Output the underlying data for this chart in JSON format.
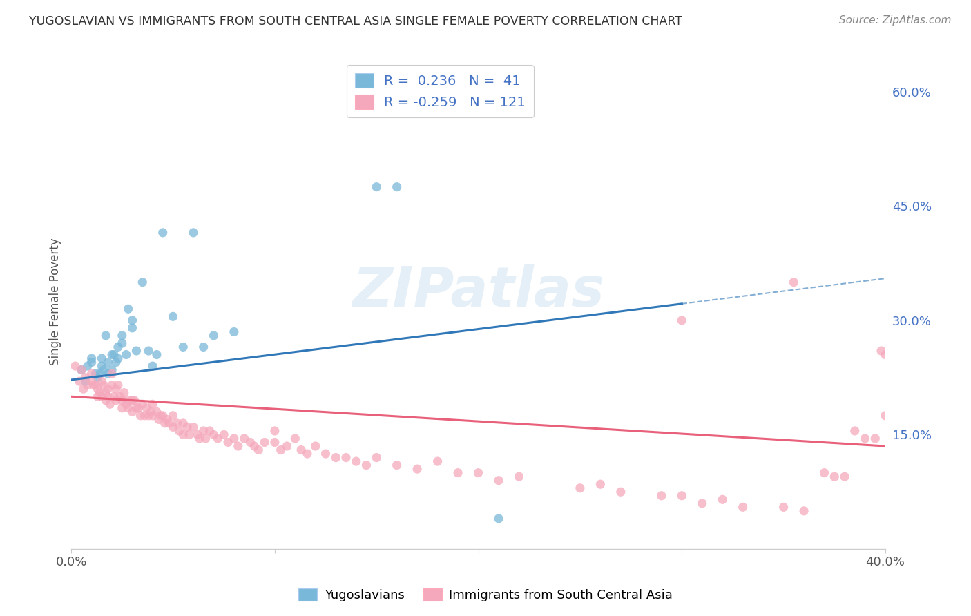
{
  "title": "YUGOSLAVIAN VS IMMIGRANTS FROM SOUTH CENTRAL ASIA SINGLE FEMALE POVERTY CORRELATION CHART",
  "source": "Source: ZipAtlas.com",
  "ylabel": "Single Female Poverty",
  "xlim": [
    0.0,
    0.4
  ],
  "ylim": [
    0.0,
    0.65
  ],
  "ytick_vals": [
    0.15,
    0.3,
    0.45,
    0.6
  ],
  "ytick_labels": [
    "15.0%",
    "30.0%",
    "45.0%",
    "60.0%"
  ],
  "blue_R": 0.236,
  "blue_N": 41,
  "pink_R": -0.259,
  "pink_N": 121,
  "blue_color": "#7ab8d9",
  "pink_color": "#f5a8bc",
  "blue_line_color": "#3178b8",
  "pink_line_color": "#e8607a",
  "watermark_text": "ZIPatlas",
  "legend_label_blue": "Yugoslavians",
  "legend_label_pink": "Immigrants from South Central Asia",
  "background_color": "#ffffff",
  "grid_color": "#d0d8e8",
  "blue_line_start_x": 0.0,
  "blue_line_end_x": 0.4,
  "blue_line_solid_end_x": 0.3,
  "blue_line_start_y": 0.222,
  "blue_line_end_y": 0.355,
  "pink_line_start_x": 0.0,
  "pink_line_end_x": 0.4,
  "pink_line_start_y": 0.2,
  "pink_line_end_y": 0.135,
  "blue_scatter_x": [
    0.005,
    0.007,
    0.008,
    0.01,
    0.01,
    0.012,
    0.013,
    0.014,
    0.015,
    0.015,
    0.016,
    0.017,
    0.018,
    0.018,
    0.02,
    0.02,
    0.021,
    0.022,
    0.023,
    0.023,
    0.025,
    0.025,
    0.027,
    0.028,
    0.03,
    0.03,
    0.032,
    0.035,
    0.038,
    0.04,
    0.042,
    0.045,
    0.05,
    0.055,
    0.06,
    0.065,
    0.07,
    0.08,
    0.15,
    0.16,
    0.21
  ],
  "blue_scatter_y": [
    0.235,
    0.22,
    0.24,
    0.25,
    0.245,
    0.23,
    0.225,
    0.23,
    0.25,
    0.24,
    0.235,
    0.28,
    0.245,
    0.23,
    0.255,
    0.235,
    0.255,
    0.245,
    0.265,
    0.25,
    0.28,
    0.27,
    0.255,
    0.315,
    0.3,
    0.29,
    0.26,
    0.35,
    0.26,
    0.24,
    0.255,
    0.415,
    0.305,
    0.265,
    0.415,
    0.265,
    0.28,
    0.285,
    0.475,
    0.475,
    0.04
  ],
  "pink_scatter_x": [
    0.002,
    0.004,
    0.005,
    0.006,
    0.007,
    0.008,
    0.01,
    0.01,
    0.011,
    0.012,
    0.013,
    0.013,
    0.014,
    0.015,
    0.015,
    0.016,
    0.017,
    0.017,
    0.018,
    0.018,
    0.019,
    0.02,
    0.02,
    0.021,
    0.022,
    0.022,
    0.023,
    0.024,
    0.025,
    0.025,
    0.026,
    0.027,
    0.028,
    0.028,
    0.03,
    0.03,
    0.031,
    0.032,
    0.033,
    0.034,
    0.035,
    0.036,
    0.037,
    0.038,
    0.039,
    0.04,
    0.04,
    0.042,
    0.043,
    0.044,
    0.045,
    0.046,
    0.047,
    0.048,
    0.05,
    0.05,
    0.052,
    0.053,
    0.055,
    0.055,
    0.057,
    0.058,
    0.06,
    0.062,
    0.063,
    0.065,
    0.066,
    0.068,
    0.07,
    0.072,
    0.075,
    0.077,
    0.08,
    0.082,
    0.085,
    0.088,
    0.09,
    0.092,
    0.095,
    0.1,
    0.1,
    0.103,
    0.106,
    0.11,
    0.113,
    0.116,
    0.12,
    0.125,
    0.13,
    0.135,
    0.14,
    0.145,
    0.15,
    0.16,
    0.17,
    0.18,
    0.19,
    0.2,
    0.21,
    0.22,
    0.25,
    0.26,
    0.27,
    0.29,
    0.3,
    0.31,
    0.32,
    0.33,
    0.35,
    0.36,
    0.37,
    0.375,
    0.38,
    0.385,
    0.39,
    0.395,
    0.398,
    0.4,
    0.4,
    0.3,
    0.355
  ],
  "pink_scatter_y": [
    0.24,
    0.22,
    0.235,
    0.21,
    0.225,
    0.215,
    0.23,
    0.22,
    0.215,
    0.215,
    0.2,
    0.21,
    0.205,
    0.22,
    0.2,
    0.215,
    0.205,
    0.195,
    0.21,
    0.2,
    0.19,
    0.23,
    0.215,
    0.2,
    0.21,
    0.195,
    0.215,
    0.2,
    0.195,
    0.185,
    0.205,
    0.19,
    0.195,
    0.185,
    0.195,
    0.18,
    0.195,
    0.185,
    0.185,
    0.175,
    0.19,
    0.175,
    0.185,
    0.175,
    0.18,
    0.19,
    0.175,
    0.18,
    0.17,
    0.175,
    0.175,
    0.165,
    0.17,
    0.165,
    0.175,
    0.16,
    0.165,
    0.155,
    0.165,
    0.15,
    0.16,
    0.15,
    0.16,
    0.15,
    0.145,
    0.155,
    0.145,
    0.155,
    0.15,
    0.145,
    0.15,
    0.14,
    0.145,
    0.135,
    0.145,
    0.14,
    0.135,
    0.13,
    0.14,
    0.14,
    0.155,
    0.13,
    0.135,
    0.145,
    0.13,
    0.125,
    0.135,
    0.125,
    0.12,
    0.12,
    0.115,
    0.11,
    0.12,
    0.11,
    0.105,
    0.115,
    0.1,
    0.1,
    0.09,
    0.095,
    0.08,
    0.085,
    0.075,
    0.07,
    0.07,
    0.06,
    0.065,
    0.055,
    0.055,
    0.05,
    0.1,
    0.095,
    0.095,
    0.155,
    0.145,
    0.145,
    0.26,
    0.255,
    0.175,
    0.3,
    0.35
  ]
}
